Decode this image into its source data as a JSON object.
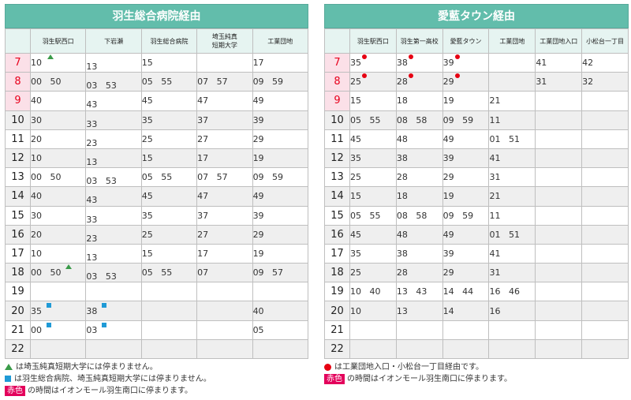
{
  "left": {
    "title": "羽生総合病院経由",
    "columns": [
      "羽生駅西口",
      "下岩瀬",
      "羽生総合病院",
      "埼玉純真\n短期大学",
      "工業団地"
    ],
    "rows": [
      {
        "hour": "7",
        "red": true,
        "cells": [
          {
            "t": "10",
            "m": [
              {
                "k": "tri",
                "x": 21
              }
            ]
          },
          {
            "t": "13",
            "low": true
          },
          {
            "t": "15"
          },
          {
            "t": ""
          },
          {
            "t": "17"
          }
        ]
      },
      {
        "hour": "8",
        "red": true,
        "cells": [
          {
            "t": "00   50"
          },
          {
            "t": "03   53",
            "low2": true
          },
          {
            "t": "05   55"
          },
          {
            "t": "07   57"
          },
          {
            "t": "09   59"
          }
        ]
      },
      {
        "hour": "9",
        "red": true,
        "cells": [
          {
            "t": "40"
          },
          {
            "t": "43",
            "low": true
          },
          {
            "t": "45"
          },
          {
            "t": "47"
          },
          {
            "t": "49"
          }
        ]
      },
      {
        "hour": "10",
        "red": false,
        "cells": [
          {
            "t": "30"
          },
          {
            "t": "33",
            "low": true
          },
          {
            "t": "35"
          },
          {
            "t": "37"
          },
          {
            "t": "39"
          }
        ]
      },
      {
        "hour": "11",
        "red": false,
        "cells": [
          {
            "t": "20"
          },
          {
            "t": "23",
            "low": true
          },
          {
            "t": "25"
          },
          {
            "t": "27"
          },
          {
            "t": "29"
          }
        ]
      },
      {
        "hour": "12",
        "red": false,
        "cells": [
          {
            "t": "10"
          },
          {
            "t": "13",
            "low": true
          },
          {
            "t": "15"
          },
          {
            "t": "17"
          },
          {
            "t": "19"
          }
        ]
      },
      {
        "hour": "13",
        "red": false,
        "cells": [
          {
            "t": "00   50"
          },
          {
            "t": "03   53",
            "low2": true
          },
          {
            "t": "05   55"
          },
          {
            "t": "07   57"
          },
          {
            "t": "09   59"
          }
        ]
      },
      {
        "hour": "14",
        "red": false,
        "cells": [
          {
            "t": "40"
          },
          {
            "t": "43",
            "low": true
          },
          {
            "t": "45"
          },
          {
            "t": "47"
          },
          {
            "t": "49"
          }
        ]
      },
      {
        "hour": "15",
        "red": false,
        "cells": [
          {
            "t": "30"
          },
          {
            "t": "33",
            "low": true
          },
          {
            "t": "35"
          },
          {
            "t": "37"
          },
          {
            "t": "39"
          }
        ]
      },
      {
        "hour": "16",
        "red": false,
        "cells": [
          {
            "t": "20"
          },
          {
            "t": "23",
            "low": true
          },
          {
            "t": "25"
          },
          {
            "t": "27"
          },
          {
            "t": "29"
          }
        ]
      },
      {
        "hour": "17",
        "red": false,
        "cells": [
          {
            "t": "10"
          },
          {
            "t": "13",
            "low": true
          },
          {
            "t": "15"
          },
          {
            "t": "17"
          },
          {
            "t": "19"
          }
        ]
      },
      {
        "hour": "18",
        "red": false,
        "cells": [
          {
            "t": "00   50",
            "m": [
              {
                "k": "tri",
                "x": 44
              }
            ]
          },
          {
            "t": "03   53",
            "low2": true
          },
          {
            "t": "05   55"
          },
          {
            "t": "07"
          },
          {
            "t": "09   57"
          }
        ]
      },
      {
        "hour": "19",
        "red": false,
        "cells": [
          {
            "t": ""
          },
          {
            "t": ""
          },
          {
            "t": ""
          },
          {
            "t": ""
          },
          {
            "t": ""
          }
        ]
      },
      {
        "hour": "20",
        "red": false,
        "cells": [
          {
            "t": "35",
            "m": [
              {
                "k": "sq",
                "x": 20
              }
            ]
          },
          {
            "t": "38",
            "m": [
              {
                "k": "sq",
                "x": 20
              }
            ]
          },
          {
            "t": ""
          },
          {
            "t": ""
          },
          {
            "t": "40"
          }
        ]
      },
      {
        "hour": "21",
        "red": false,
        "cells": [
          {
            "t": "00",
            "m": [
              {
                "k": "sq",
                "x": 20
              }
            ]
          },
          {
            "t": "03",
            "m": [
              {
                "k": "sq",
                "x": 20
              }
            ]
          },
          {
            "t": ""
          },
          {
            "t": ""
          },
          {
            "t": "05"
          }
        ]
      },
      {
        "hour": "22",
        "red": false,
        "cells": [
          {
            "t": ""
          },
          {
            "t": ""
          },
          {
            "t": ""
          },
          {
            "t": ""
          },
          {
            "t": ""
          }
        ]
      }
    ],
    "legend": [
      {
        "icon": "green-triangle-icon",
        "text": "は埼玉純真短期大学には停まりません。"
      },
      {
        "icon": "blue-square-icon",
        "text": "は羽生総合病院、埼玉純真短期大学には停まりません。"
      },
      {
        "icon": "red-label",
        "label": "赤色",
        "text": "の時間はイオンモール羽生南口に停まります。"
      }
    ]
  },
  "right": {
    "title": "愛藍タウン経由",
    "columns": [
      "羽生駅西口",
      "羽生第一高校",
      "愛藍タウン",
      "工業団地",
      "工業団地入口",
      "小松台一丁目"
    ],
    "rows": [
      {
        "hour": "7",
        "red": true,
        "cells": [
          {
            "t": "35",
            "m": [
              {
                "k": "dot",
                "x": 15
              }
            ]
          },
          {
            "t": "38",
            "m": [
              {
                "k": "dot",
                "x": 15
              }
            ]
          },
          {
            "t": "39",
            "m": [
              {
                "k": "dot",
                "x": 15
              }
            ]
          },
          {
            "t": ""
          },
          {
            "t": "41"
          },
          {
            "t": "42"
          }
        ]
      },
      {
        "hour": "8",
        "red": true,
        "cells": [
          {
            "t": "25",
            "m": [
              {
                "k": "dot",
                "x": 15
              }
            ]
          },
          {
            "t": "28",
            "m": [
              {
                "k": "dot",
                "x": 15
              }
            ]
          },
          {
            "t": "29",
            "m": [
              {
                "k": "dot",
                "x": 15
              }
            ]
          },
          {
            "t": ""
          },
          {
            "t": "31"
          },
          {
            "t": "32"
          }
        ]
      },
      {
        "hour": "9",
        "red": true,
        "cells": [
          {
            "t": "15"
          },
          {
            "t": "18"
          },
          {
            "t": "19"
          },
          {
            "t": "21"
          },
          {
            "t": ""
          },
          {
            "t": ""
          }
        ]
      },
      {
        "hour": "10",
        "red": false,
        "cells": [
          {
            "t": "05   55"
          },
          {
            "t": "08   58"
          },
          {
            "t": "09   59"
          },
          {
            "t": "11"
          },
          {
            "t": ""
          },
          {
            "t": ""
          }
        ]
      },
      {
        "hour": "11",
        "red": false,
        "cells": [
          {
            "t": "45"
          },
          {
            "t": "48"
          },
          {
            "t": "49"
          },
          {
            "t": "01   51"
          },
          {
            "t": ""
          },
          {
            "t": ""
          }
        ]
      },
      {
        "hour": "12",
        "red": false,
        "cells": [
          {
            "t": "35"
          },
          {
            "t": "38"
          },
          {
            "t": "39"
          },
          {
            "t": "41"
          },
          {
            "t": ""
          },
          {
            "t": ""
          }
        ]
      },
      {
        "hour": "13",
        "red": false,
        "cells": [
          {
            "t": "25"
          },
          {
            "t": "28"
          },
          {
            "t": "29"
          },
          {
            "t": "31"
          },
          {
            "t": ""
          },
          {
            "t": ""
          }
        ]
      },
      {
        "hour": "14",
        "red": false,
        "cells": [
          {
            "t": "15"
          },
          {
            "t": "18"
          },
          {
            "t": "19"
          },
          {
            "t": "21"
          },
          {
            "t": ""
          },
          {
            "t": ""
          }
        ]
      },
      {
        "hour": "15",
        "red": false,
        "cells": [
          {
            "t": "05   55"
          },
          {
            "t": "08   58"
          },
          {
            "t": "09   59"
          },
          {
            "t": "11"
          },
          {
            "t": ""
          },
          {
            "t": ""
          }
        ]
      },
      {
        "hour": "16",
        "red": false,
        "cells": [
          {
            "t": "45"
          },
          {
            "t": "48"
          },
          {
            "t": "49"
          },
          {
            "t": "01   51"
          },
          {
            "t": ""
          },
          {
            "t": ""
          }
        ]
      },
      {
        "hour": "17",
        "red": false,
        "cells": [
          {
            "t": "35"
          },
          {
            "t": "38"
          },
          {
            "t": "39"
          },
          {
            "t": "41"
          },
          {
            "t": ""
          },
          {
            "t": ""
          }
        ]
      },
      {
        "hour": "18",
        "red": false,
        "cells": [
          {
            "t": "25"
          },
          {
            "t": "28"
          },
          {
            "t": "29"
          },
          {
            "t": "31"
          },
          {
            "t": ""
          },
          {
            "t": ""
          }
        ]
      },
      {
        "hour": "19",
        "red": false,
        "cells": [
          {
            "t": "10   40"
          },
          {
            "t": "13   43"
          },
          {
            "t": "14   44"
          },
          {
            "t": "16   46"
          },
          {
            "t": ""
          },
          {
            "t": ""
          }
        ]
      },
      {
        "hour": "20",
        "red": false,
        "cells": [
          {
            "t": "10"
          },
          {
            "t": "13"
          },
          {
            "t": "14"
          },
          {
            "t": "16"
          },
          {
            "t": ""
          },
          {
            "t": ""
          }
        ]
      },
      {
        "hour": "21",
        "red": false,
        "cells": [
          {
            "t": ""
          },
          {
            "t": ""
          },
          {
            "t": ""
          },
          {
            "t": ""
          },
          {
            "t": ""
          },
          {
            "t": ""
          }
        ]
      },
      {
        "hour": "22",
        "red": false,
        "cells": [
          {
            "t": ""
          },
          {
            "t": ""
          },
          {
            "t": ""
          },
          {
            "t": ""
          },
          {
            "t": ""
          },
          {
            "t": ""
          }
        ]
      }
    ],
    "legend": [
      {
        "icon": "red-dot-icon",
        "text": "は工業団地入口・小松台一丁目経由です。"
      },
      {
        "icon": "red-label",
        "label": "赤色",
        "text": "の時間はイオンモール羽生南口に停まります。"
      }
    ]
  },
  "colors": {
    "header": "#62bdab",
    "red_hour": "#e8001c",
    "red_label": "#e3005b",
    "tri": "#3a9b49",
    "sq": "#1f9ad6",
    "dot": "#e60012"
  }
}
